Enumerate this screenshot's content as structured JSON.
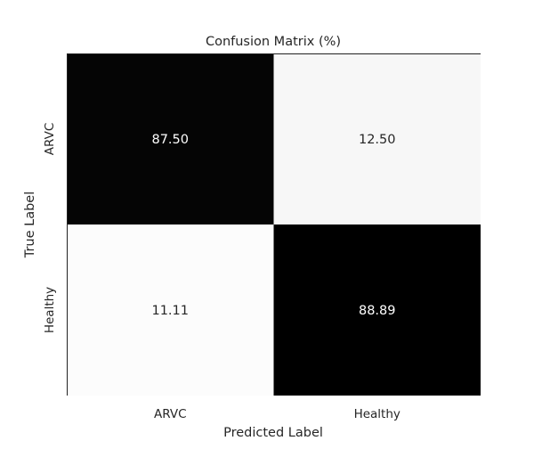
{
  "chart_data": {
    "type": "heatmap",
    "title": "Confusion Matrix (%)",
    "xlabel": "Predicted Label",
    "ylabel": "True Label",
    "x_categories": [
      "ARVC",
      "Healthy"
    ],
    "y_categories": [
      "ARVC",
      "Healthy"
    ],
    "values": [
      [
        87.5,
        12.5
      ],
      [
        11.11,
        88.89
      ]
    ],
    "value_labels": [
      [
        "87.50",
        "12.50"
      ],
      [
        "11.11",
        "88.89"
      ]
    ],
    "colormap": "gray_r",
    "color_range": [
      11.11,
      88.89
    ],
    "colorbar": false,
    "grid": false
  }
}
